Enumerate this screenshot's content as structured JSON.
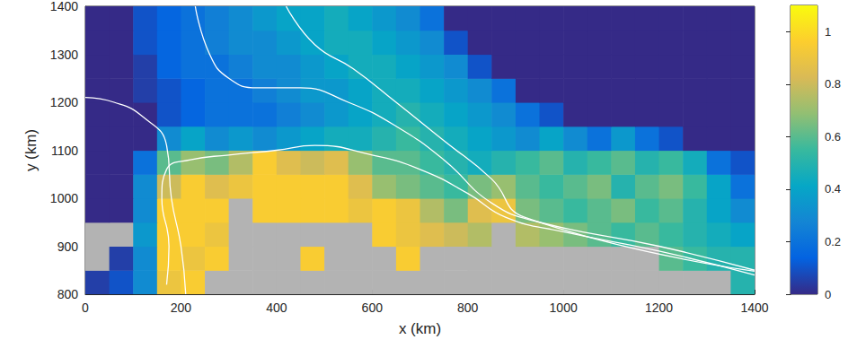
{
  "chart_data": {
    "type": "heatmap",
    "xlabel": "x (km)",
    "ylabel": "y (km)",
    "xlim": [
      0,
      1400
    ],
    "ylim": [
      800,
      1400
    ],
    "xticks": [
      0,
      200,
      400,
      600,
      800,
      1000,
      1200,
      1400
    ],
    "yticks": [
      800,
      900,
      1000,
      1100,
      1200,
      1300,
      1400
    ],
    "x": [
      25,
      75,
      125,
      175,
      225,
      275,
      325,
      375,
      425,
      475,
      525,
      575,
      625,
      675,
      725,
      775,
      825,
      875,
      925,
      975,
      1025,
      1075,
      1125,
      1175,
      1225,
      1275,
      1325,
      1375
    ],
    "y": [
      825,
      875,
      925,
      975,
      1025,
      1075,
      1125,
      1175,
      1225,
      1275,
      1325,
      1375
    ],
    "values": [
      [
        0.05,
        0.1,
        0.3,
        0.9,
        0.95,
        null,
        null,
        null,
        null,
        null,
        null,
        null,
        null,
        null,
        null,
        null,
        null,
        null,
        null,
        null,
        null,
        null,
        null,
        null,
        null,
        null,
        null,
        0.5
      ],
      [
        null,
        0.05,
        0.3,
        0.95,
        0.9,
        0.95,
        null,
        null,
        null,
        0.95,
        null,
        null,
        null,
        0.95,
        null,
        null,
        null,
        null,
        null,
        null,
        null,
        null,
        null,
        null,
        0.6,
        0.55,
        0.5,
        0.5
      ],
      [
        null,
        null,
        0.35,
        0.95,
        0.95,
        0.9,
        null,
        null,
        null,
        null,
        null,
        null,
        0.95,
        0.9,
        0.85,
        0.8,
        0.75,
        null,
        0.75,
        0.7,
        0.65,
        0.6,
        0.55,
        0.6,
        0.55,
        0.5,
        0.45,
        0.4
      ],
      [
        0,
        0,
        0.3,
        0.95,
        0.95,
        0.95,
        null,
        0.95,
        0.95,
        0.95,
        0.95,
        0.9,
        0.95,
        0.9,
        0.75,
        0.65,
        0.85,
        0.9,
        0.65,
        0.6,
        0.55,
        0.6,
        0.65,
        0.55,
        0.6,
        0.5,
        0.4,
        0.3
      ],
      [
        0,
        0,
        0.3,
        0.8,
        0.95,
        0.85,
        0.9,
        0.95,
        0.95,
        0.95,
        0.95,
        0.85,
        0.7,
        0.65,
        0.6,
        0.55,
        0.65,
        0.7,
        0.6,
        0.55,
        0.6,
        0.65,
        0.5,
        0.6,
        0.65,
        0.55,
        0.4,
        0.2
      ],
      [
        0,
        0,
        0.2,
        0.6,
        0.7,
        0.65,
        0.75,
        0.95,
        0.85,
        0.8,
        0.85,
        0.7,
        0.6,
        0.6,
        0.55,
        0.5,
        0.45,
        0.5,
        0.55,
        0.6,
        0.5,
        0.55,
        0.6,
        0.5,
        0.55,
        0.45,
        0.2,
        0.1
      ],
      [
        0,
        0,
        0,
        0.3,
        0.4,
        0.3,
        0.35,
        0.3,
        0.35,
        0.4,
        0.45,
        0.45,
        0.5,
        0.55,
        0.5,
        0.45,
        0.4,
        0.35,
        0.3,
        0.4,
        0.3,
        0.2,
        0.35,
        0.2,
        0.1,
        0,
        0,
        0
      ],
      [
        0,
        0,
        0,
        0.1,
        0.15,
        0.2,
        0.2,
        0.2,
        0.25,
        0.3,
        0.35,
        0.4,
        0.45,
        0.5,
        0.45,
        0.4,
        0.35,
        0.3,
        0.2,
        0.1,
        0,
        0,
        0,
        0,
        0,
        0,
        0,
        0
      ],
      [
        0,
        0,
        0.05,
        0.1,
        0.15,
        0.2,
        0.2,
        0.25,
        0.3,
        0.35,
        0.35,
        0.4,
        0.45,
        0.45,
        0.4,
        0.35,
        0.3,
        0.2,
        0,
        0,
        0,
        0,
        0,
        0,
        0,
        0,
        0,
        0
      ],
      [
        0,
        0,
        0.05,
        0.15,
        0.2,
        0.2,
        0.25,
        0.3,
        0.3,
        0.35,
        0.4,
        0.45,
        0.45,
        0.4,
        0.35,
        0.3,
        0.1,
        0,
        0,
        0,
        0,
        0,
        0,
        0,
        0,
        0,
        0,
        0
      ],
      [
        0,
        0,
        0.1,
        0.15,
        0.2,
        0.25,
        0.3,
        0.3,
        0.35,
        0.4,
        0.45,
        0.45,
        0.4,
        0.35,
        0.3,
        0.1,
        0,
        0,
        0,
        0,
        0,
        0,
        0,
        0,
        0,
        0,
        0,
        0
      ],
      [
        0,
        0,
        0.1,
        0.15,
        0.2,
        0.25,
        0.3,
        0.35,
        0.4,
        0.4,
        0.45,
        0.4,
        0.35,
        0.3,
        0.2,
        0,
        0,
        0,
        0,
        0,
        0,
        0,
        0,
        0,
        0,
        0,
        0,
        0
      ]
    ],
    "colorbar": {
      "range": [
        0,
        1.1
      ],
      "ticks": [
        0,
        0.2,
        0.4,
        0.6,
        0.8,
        1
      ]
    },
    "contours": [
      [
        [
          170,
          820
        ],
        [
          175,
          900
        ],
        [
          160,
          1000
        ],
        [
          170,
          1060
        ],
        [
          220,
          1080
        ],
        [
          300,
          1090
        ],
        [
          400,
          1100
        ],
        [
          480,
          1110
        ],
        [
          600,
          1090
        ],
        [
          700,
          1060
        ],
        [
          800,
          1010
        ],
        [
          880,
          960
        ],
        [
          1000,
          930
        ],
        [
          1200,
          890
        ],
        [
          1400,
          840
        ]
      ],
      [
        [
          230,
          1400
        ],
        [
          260,
          1300
        ],
        [
          300,
          1250
        ],
        [
          360,
          1230
        ],
        [
          450,
          1230
        ],
        [
          550,
          1200
        ],
        [
          650,
          1150
        ],
        [
          750,
          1080
        ],
        [
          850,
          990
        ],
        [
          950,
          950
        ],
        [
          1200,
          900
        ],
        [
          1400,
          850
        ]
      ],
      [
        [
          0,
          1210
        ],
        [
          60,
          1200
        ],
        [
          120,
          1170
        ],
        [
          170,
          1110
        ],
        [
          180,
          1000
        ],
        [
          200,
          900
        ],
        [
          210,
          800
        ]
      ],
      [
        [
          420,
          1400
        ],
        [
          480,
          1320
        ],
        [
          560,
          1270
        ],
        [
          650,
          1200
        ],
        [
          750,
          1120
        ],
        [
          850,
          1040
        ],
        [
          920,
          960
        ],
        [
          1400,
          848
        ]
      ]
    ]
  }
}
